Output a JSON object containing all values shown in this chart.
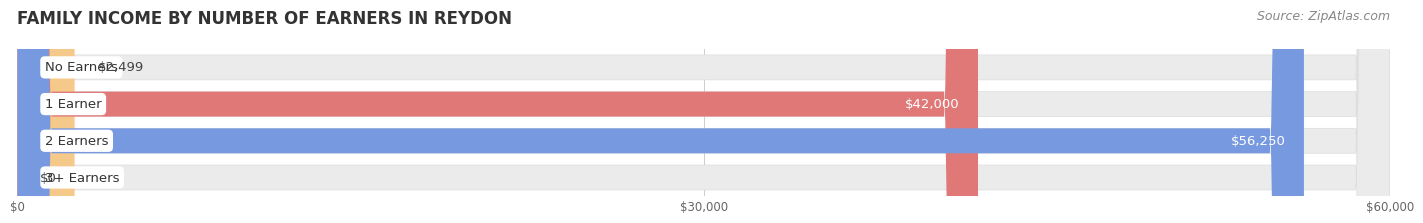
{
  "title": "FAMILY INCOME BY NUMBER OF EARNERS IN REYDON",
  "source": "Source: ZipAtlas.com",
  "categories": [
    "No Earners",
    "1 Earner",
    "2 Earners",
    "3+ Earners"
  ],
  "values": [
    2499,
    42000,
    56250,
    0
  ],
  "labels": [
    "$2,499",
    "$42,000",
    "$56,250",
    "$0"
  ],
  "bar_colors": [
    "#f5c98a",
    "#e07878",
    "#7799e0",
    "#c0a0cc"
  ],
  "bar_bg_color": "#ebebeb",
  "label_colors_inside": [
    "#333333",
    "#ffffff",
    "#ffffff",
    "#333333"
  ],
  "label_outside": [
    true,
    false,
    false,
    true
  ],
  "xlim": [
    0,
    60000
  ],
  "xticks": [
    0,
    30000,
    60000
  ],
  "xticklabels": [
    "$0",
    "$30,000",
    "$60,000"
  ],
  "fig_bg_color": "#ffffff",
  "title_fontsize": 12,
  "source_fontsize": 9,
  "bar_height": 0.68,
  "label_fontsize": 9.5,
  "category_fontsize": 9.5,
  "title_color": "#333333",
  "source_color": "#888888",
  "tick_color": "#666666",
  "grid_color": "#cccccc",
  "bar_gap": 1.0
}
